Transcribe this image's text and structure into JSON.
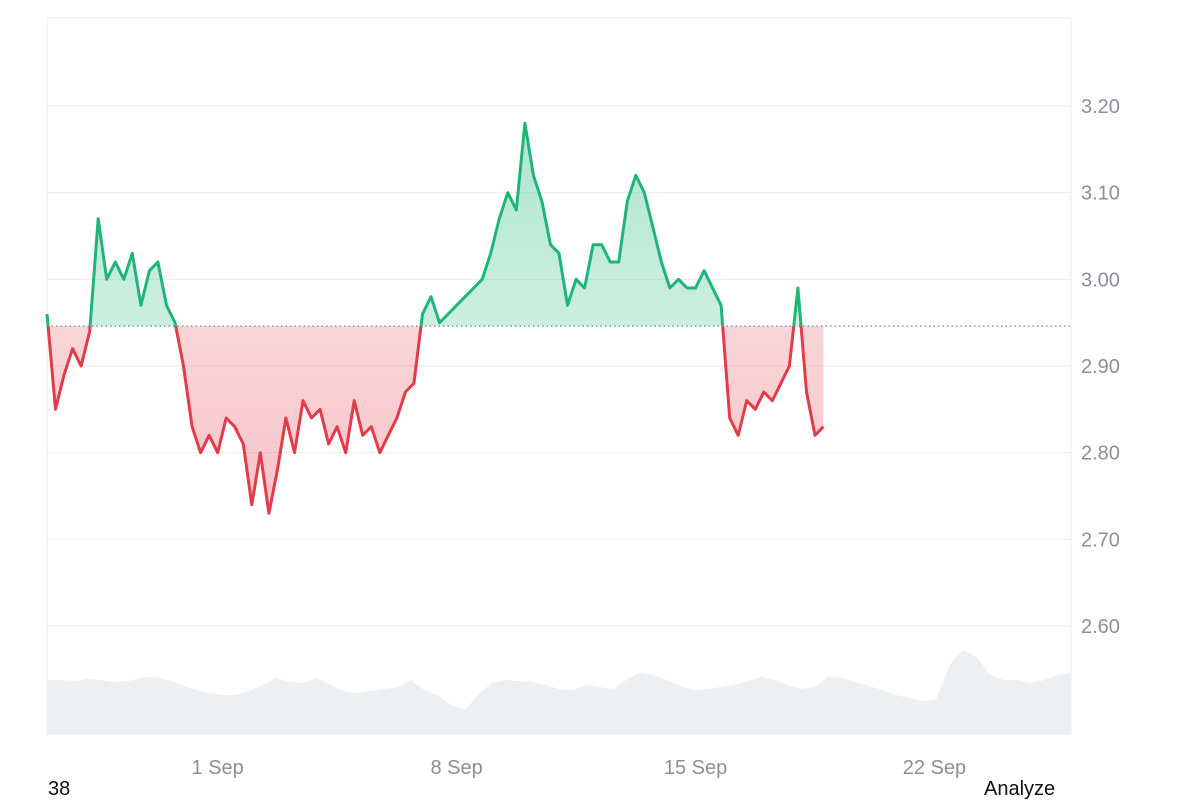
{
  "chart_data": {
    "type": "area",
    "baseline": 2.946,
    "ylim": [
      2.5,
      3.3
    ],
    "y_ticks": [
      {
        "value": 3.2,
        "label": "3.20"
      },
      {
        "value": 3.1,
        "label": "3.10"
      },
      {
        "value": 3.0,
        "label": "3.00"
      },
      {
        "value": 2.9,
        "label": "2.90"
      },
      {
        "value": 2.8,
        "label": "2.80"
      },
      {
        "value": 2.7,
        "label": "2.70"
      },
      {
        "value": 2.6,
        "label": "2.60"
      }
    ],
    "x_domain": [
      "2024-08-27",
      "2024-09-26"
    ],
    "x_ticks": [
      {
        "date": "2024-09-01",
        "label": "1 Sep"
      },
      {
        "date": "2024-09-08",
        "label": "8 Sep"
      },
      {
        "date": "2024-09-15",
        "label": "15 Sep"
      },
      {
        "date": "2024-09-22",
        "label": "22 Sep"
      }
    ],
    "colors": {
      "above": "#1fb57a",
      "below": "#e23b4a",
      "grid": "#eceef1",
      "volume": "#edf0f3",
      "baseline": "#7a7f88"
    },
    "series": [
      {
        "values": [
          [
            "2024-08-27 00:00",
            2.96
          ],
          [
            "2024-08-27 06:00",
            2.85
          ],
          [
            "2024-08-27 12:00",
            2.89
          ],
          [
            "2024-08-27 18:00",
            2.92
          ],
          [
            "2024-08-28 00:00",
            2.9
          ],
          [
            "2024-08-28 06:00",
            2.94
          ],
          [
            "2024-08-28 12:00",
            3.07
          ],
          [
            "2024-08-28 18:00",
            3.0
          ],
          [
            "2024-08-29 00:00",
            3.02
          ],
          [
            "2024-08-29 06:00",
            3.0
          ],
          [
            "2024-08-29 12:00",
            3.03
          ],
          [
            "2024-08-29 18:00",
            2.97
          ],
          [
            "2024-08-30 00:00",
            3.01
          ],
          [
            "2024-08-30 06:00",
            3.02
          ],
          [
            "2024-08-30 12:00",
            2.97
          ],
          [
            "2024-08-30 18:00",
            2.95
          ],
          [
            "2024-08-31 00:00",
            2.9
          ],
          [
            "2024-08-31 06:00",
            2.83
          ],
          [
            "2024-08-31 12:00",
            2.8
          ],
          [
            "2024-08-31 18:00",
            2.82
          ],
          [
            "2024-09-01 00:00",
            2.8
          ],
          [
            "2024-09-01 06:00",
            2.84
          ],
          [
            "2024-09-01 12:00",
            2.83
          ],
          [
            "2024-09-01 18:00",
            2.81
          ],
          [
            "2024-09-02 00:00",
            2.74
          ],
          [
            "2024-09-02 06:00",
            2.8
          ],
          [
            "2024-09-02 12:00",
            2.73
          ],
          [
            "2024-09-02 18:00",
            2.78
          ],
          [
            "2024-09-03 00:00",
            2.84
          ],
          [
            "2024-09-03 06:00",
            2.8
          ],
          [
            "2024-09-03 12:00",
            2.86
          ],
          [
            "2024-09-03 18:00",
            2.84
          ],
          [
            "2024-09-04 00:00",
            2.85
          ],
          [
            "2024-09-04 06:00",
            2.81
          ],
          [
            "2024-09-04 12:00",
            2.83
          ],
          [
            "2024-09-04 18:00",
            2.8
          ],
          [
            "2024-09-05 00:00",
            2.86
          ],
          [
            "2024-09-05 06:00",
            2.82
          ],
          [
            "2024-09-05 12:00",
            2.83
          ],
          [
            "2024-09-05 18:00",
            2.8
          ],
          [
            "2024-09-06 00:00",
            2.82
          ],
          [
            "2024-09-06 06:00",
            2.84
          ],
          [
            "2024-09-06 12:00",
            2.87
          ],
          [
            "2024-09-06 18:00",
            2.88
          ],
          [
            "2024-09-07 00:00",
            2.96
          ],
          [
            "2024-09-07 06:00",
            2.98
          ],
          [
            "2024-09-07 12:00",
            2.95
          ],
          [
            "2024-09-07 18:00",
            2.96
          ],
          [
            "2024-09-08 00:00",
            2.97
          ],
          [
            "2024-09-08 06:00",
            2.98
          ],
          [
            "2024-09-08 12:00",
            2.99
          ],
          [
            "2024-09-08 18:00",
            3.0
          ],
          [
            "2024-09-09 00:00",
            3.03
          ],
          [
            "2024-09-09 06:00",
            3.07
          ],
          [
            "2024-09-09 12:00",
            3.1
          ],
          [
            "2024-09-09 18:00",
            3.08
          ],
          [
            "2024-09-10 00:00",
            3.18
          ],
          [
            "2024-09-10 06:00",
            3.12
          ],
          [
            "2024-09-10 12:00",
            3.09
          ],
          [
            "2024-09-10 18:00",
            3.04
          ],
          [
            "2024-09-11 00:00",
            3.03
          ],
          [
            "2024-09-11 06:00",
            2.97
          ],
          [
            "2024-09-11 12:00",
            3.0
          ],
          [
            "2024-09-11 18:00",
            2.99
          ],
          [
            "2024-09-12 00:00",
            3.04
          ],
          [
            "2024-09-12 06:00",
            3.04
          ],
          [
            "2024-09-12 12:00",
            3.02
          ],
          [
            "2024-09-12 18:00",
            3.02
          ],
          [
            "2024-09-13 00:00",
            3.09
          ],
          [
            "2024-09-13 06:00",
            3.12
          ],
          [
            "2024-09-13 12:00",
            3.1
          ],
          [
            "2024-09-13 18:00",
            3.06
          ],
          [
            "2024-09-14 00:00",
            3.02
          ],
          [
            "2024-09-14 06:00",
            2.99
          ],
          [
            "2024-09-14 12:00",
            3.0
          ],
          [
            "2024-09-14 18:00",
            2.99
          ],
          [
            "2024-09-15 00:00",
            2.99
          ],
          [
            "2024-09-15 06:00",
            3.01
          ],
          [
            "2024-09-15 12:00",
            2.99
          ],
          [
            "2024-09-15 18:00",
            2.97
          ],
          [
            "2024-09-16 00:00",
            2.84
          ],
          [
            "2024-09-16 06:00",
            2.82
          ],
          [
            "2024-09-16 12:00",
            2.86
          ],
          [
            "2024-09-16 18:00",
            2.85
          ],
          [
            "2024-09-17 00:00",
            2.87
          ],
          [
            "2024-09-17 06:00",
            2.86
          ],
          [
            "2024-09-17 12:00",
            2.88
          ],
          [
            "2024-09-17 18:00",
            2.9
          ],
          [
            "2024-09-18 00:00",
            2.99
          ],
          [
            "2024-09-18 06:00",
            2.87
          ],
          [
            "2024-09-18 12:00",
            2.82
          ],
          [
            "2024-09-18 18:00",
            2.83
          ]
        ]
      }
    ],
    "volume": [
      0.55,
      0.55,
      0.54,
      0.56,
      0.55,
      0.53,
      0.54,
      0.57,
      0.58,
      0.55,
      0.5,
      0.45,
      0.42,
      0.4,
      0.4,
      0.44,
      0.5,
      0.57,
      0.53,
      0.52,
      0.57,
      0.5,
      0.44,
      0.42,
      0.44,
      0.46,
      0.48,
      0.55,
      0.45,
      0.4,
      0.3,
      0.25,
      0.4,
      0.52,
      0.55,
      0.54,
      0.53,
      0.5,
      0.46,
      0.45,
      0.5,
      0.48,
      0.46,
      0.55,
      0.62,
      0.6,
      0.55,
      0.49,
      0.45,
      0.46,
      0.48,
      0.5,
      0.54,
      0.58,
      0.55,
      0.5,
      0.46,
      0.48,
      0.58,
      0.57,
      0.53,
      0.49,
      0.45,
      0.4,
      0.37,
      0.34,
      0.36,
      0.7,
      0.85,
      0.78,
      0.6,
      0.55,
      0.55,
      0.52,
      0.55,
      0.6,
      0.62
    ]
  },
  "footer": {
    "left_text": "38",
    "analyze_label": "Analyze"
  }
}
